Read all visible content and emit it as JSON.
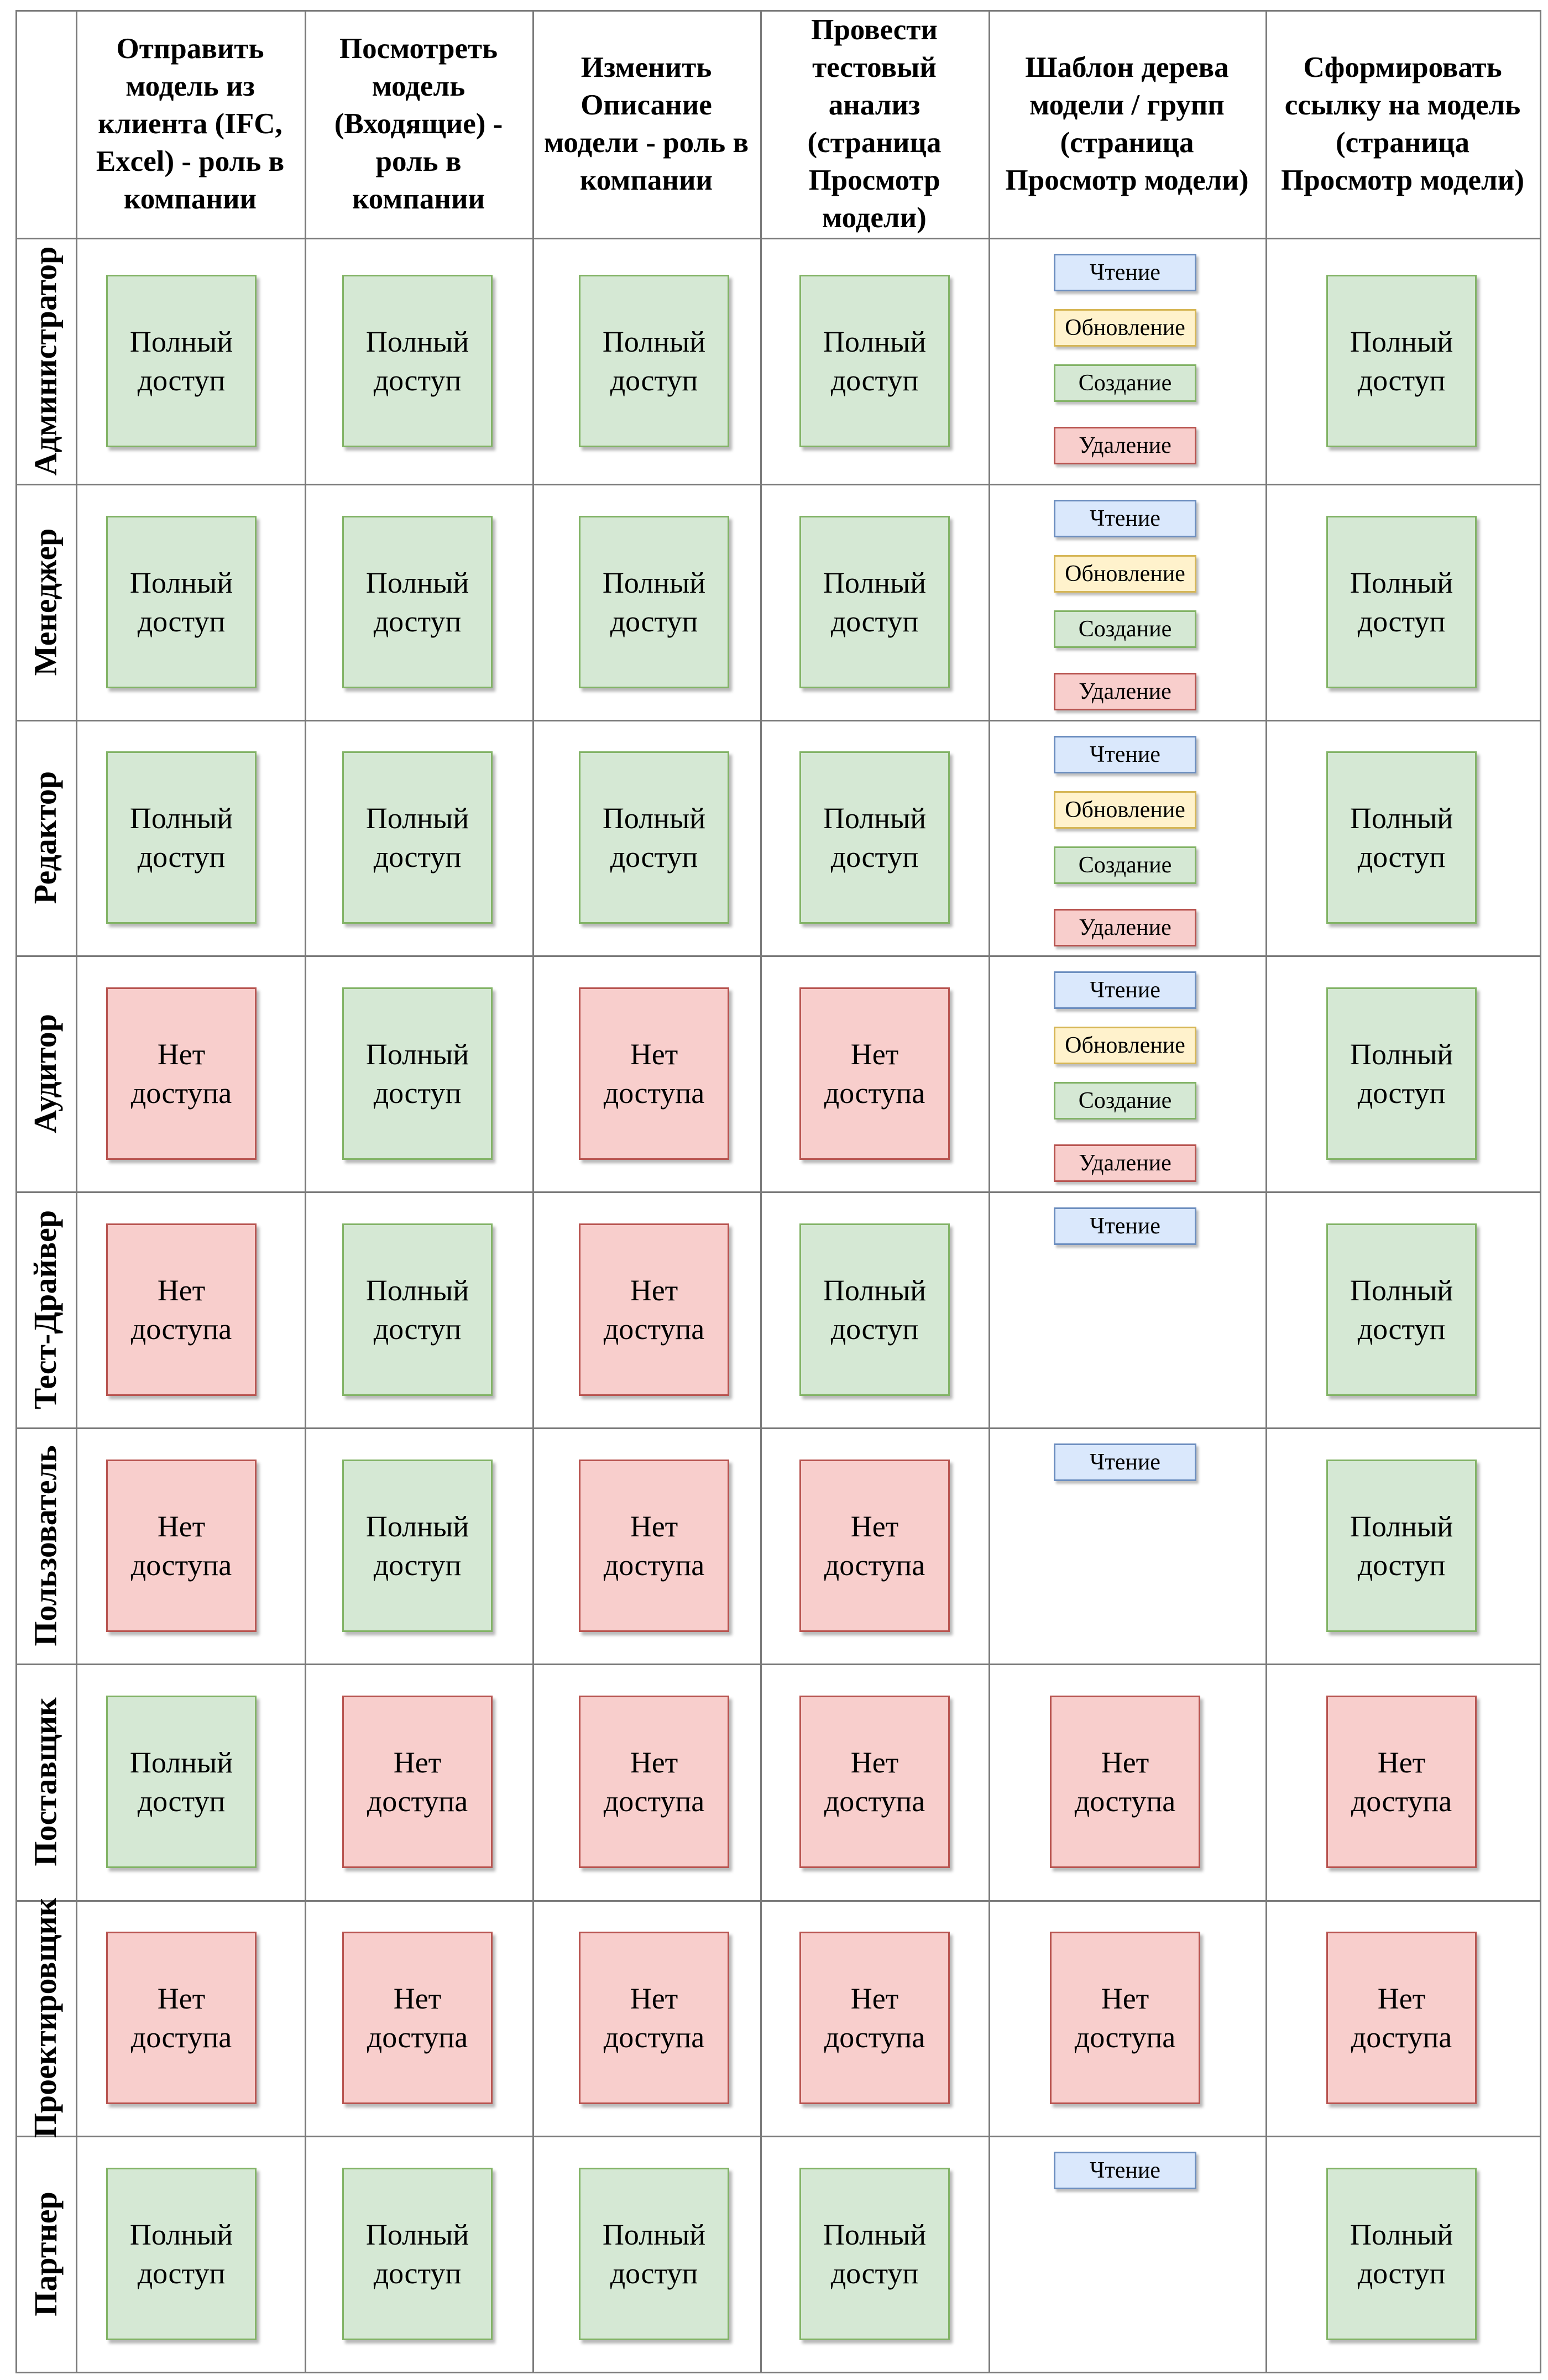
{
  "columns": [
    "Отправить модель из клиента (IFC, Excel) - роль в компании",
    "Посмотреть модель (Входящие) - роль в компании",
    "Изменить Описание модели - роль в компании",
    "Провести тестовый анализ (страница Просмотр модели)",
    "Шаблон дерева модели / групп (страница Просмотр модели)",
    "Сформировать ссылку на модель (страница Просмотр модели)"
  ],
  "labels": {
    "full": "Полный доступ",
    "none": "Нет доступа",
    "read": "Чтение",
    "update": "Обновление",
    "create": "Создание",
    "delete": "Удаление"
  },
  "colors": {
    "full_fill": "#d5e8d4",
    "full_border": "#82b366",
    "none_fill": "#f8cecc",
    "none_border": "#b85450",
    "read_fill": "#dae8fc",
    "read_border": "#6c8ebf",
    "update_fill": "#fff2cc",
    "update_border": "#d6b656"
  },
  "rows": [
    {
      "role": "Администратор",
      "access": [
        "full",
        "full",
        "full",
        "full",
        [
          "read",
          "update",
          "create",
          "delete"
        ],
        "full"
      ]
    },
    {
      "role": "Менеджер",
      "access": [
        "full",
        "full",
        "full",
        "full",
        [
          "read",
          "update",
          "create",
          "delete"
        ],
        "full"
      ]
    },
    {
      "role": "Редактор",
      "access": [
        "full",
        "full",
        "full",
        "full",
        [
          "read",
          "update",
          "create",
          "delete"
        ],
        "full"
      ]
    },
    {
      "role": "Аудитор",
      "access": [
        "none",
        "full",
        "none",
        "none",
        [
          "read",
          "update",
          "create",
          "delete"
        ],
        "full"
      ]
    },
    {
      "role": "Тест-Драйвер",
      "access": [
        "none",
        "full",
        "none",
        "full",
        [
          "read"
        ],
        "full"
      ]
    },
    {
      "role": "Пользователь",
      "access": [
        "none",
        "full",
        "none",
        "none",
        [
          "read"
        ],
        "full"
      ]
    },
    {
      "role": "Поставщик",
      "access": [
        "full",
        "none",
        "none",
        "none",
        "none",
        "none"
      ]
    },
    {
      "role": "Проектировщик",
      "access": [
        "none",
        "none",
        "none",
        "none",
        "none",
        "none"
      ]
    },
    {
      "role": "Партнер",
      "access": [
        "full",
        "full",
        "full",
        "full",
        [
          "read"
        ],
        "full"
      ]
    }
  ]
}
